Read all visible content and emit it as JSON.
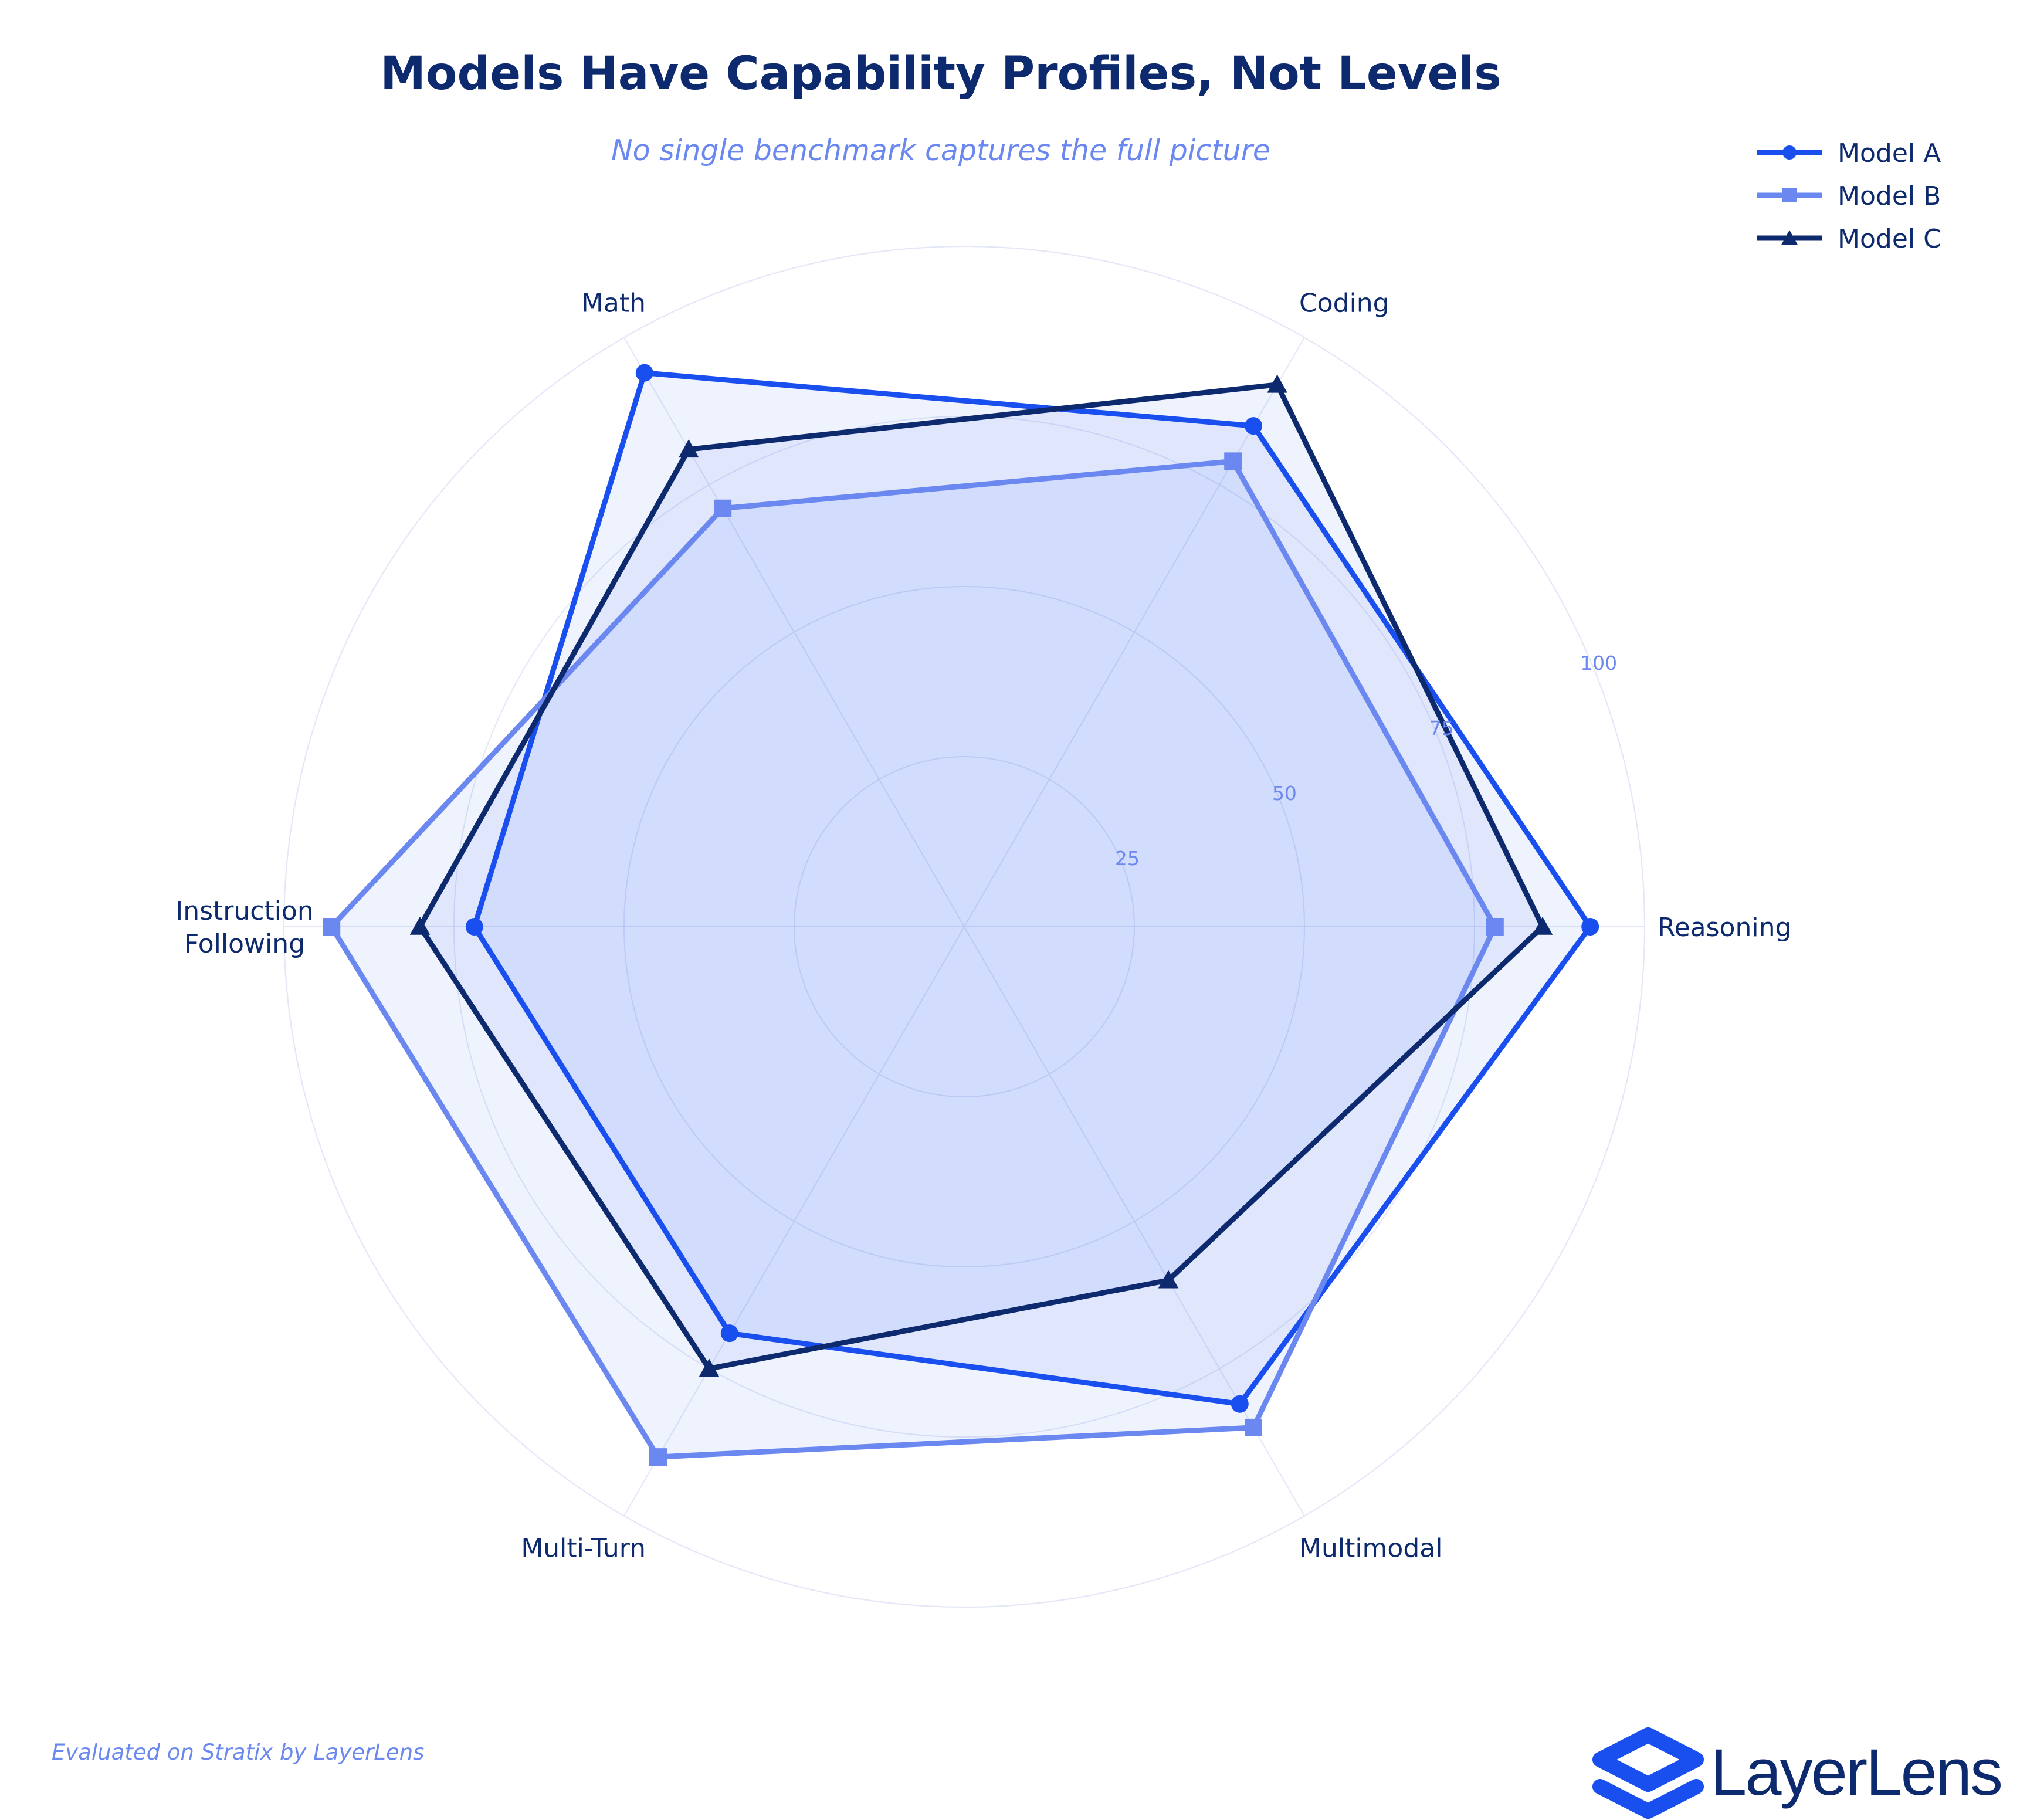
{
  "chart_data": {
    "type": "radar",
    "title": "Models Have Capability Profiles, Not Levels",
    "subtitle": "No single benchmark captures the full picture",
    "axes": [
      "Reasoning",
      "Coding",
      "Math",
      "Instruction Following",
      "Multi-Turn",
      "Multimodal"
    ],
    "axis_label_lines": [
      [
        "Reasoning"
      ],
      [
        "Coding"
      ],
      [
        "Math"
      ],
      [
        "Instruction",
        "Following"
      ],
      [
        "Multi-Turn"
      ],
      [
        "Multimodal"
      ]
    ],
    "radial_range": [
      0,
      100
    ],
    "radial_ticks": [
      25,
      50,
      75,
      100
    ],
    "grid": true,
    "legend_position": "top-right",
    "series": [
      {
        "name": "Model A",
        "marker": "circle",
        "color": "#1a4fef",
        "values": [
          92,
          85,
          94,
          72,
          69,
          81
        ]
      },
      {
        "name": "Model B",
        "marker": "square",
        "color": "#6a88f0",
        "values": [
          78,
          79,
          71,
          93,
          90,
          85
        ]
      },
      {
        "name": "Model C",
        "marker": "triangle",
        "color": "#0d2a6e",
        "values": [
          85,
          92,
          81,
          80,
          75,
          60
        ]
      }
    ]
  },
  "footer": {
    "credit": "Evaluated on Stratix by LayerLens",
    "brand": "LayerLens"
  },
  "colors": {
    "grid": "#e3e7f7",
    "title": "#0d2a6e",
    "brand": "#1a4fef"
  }
}
